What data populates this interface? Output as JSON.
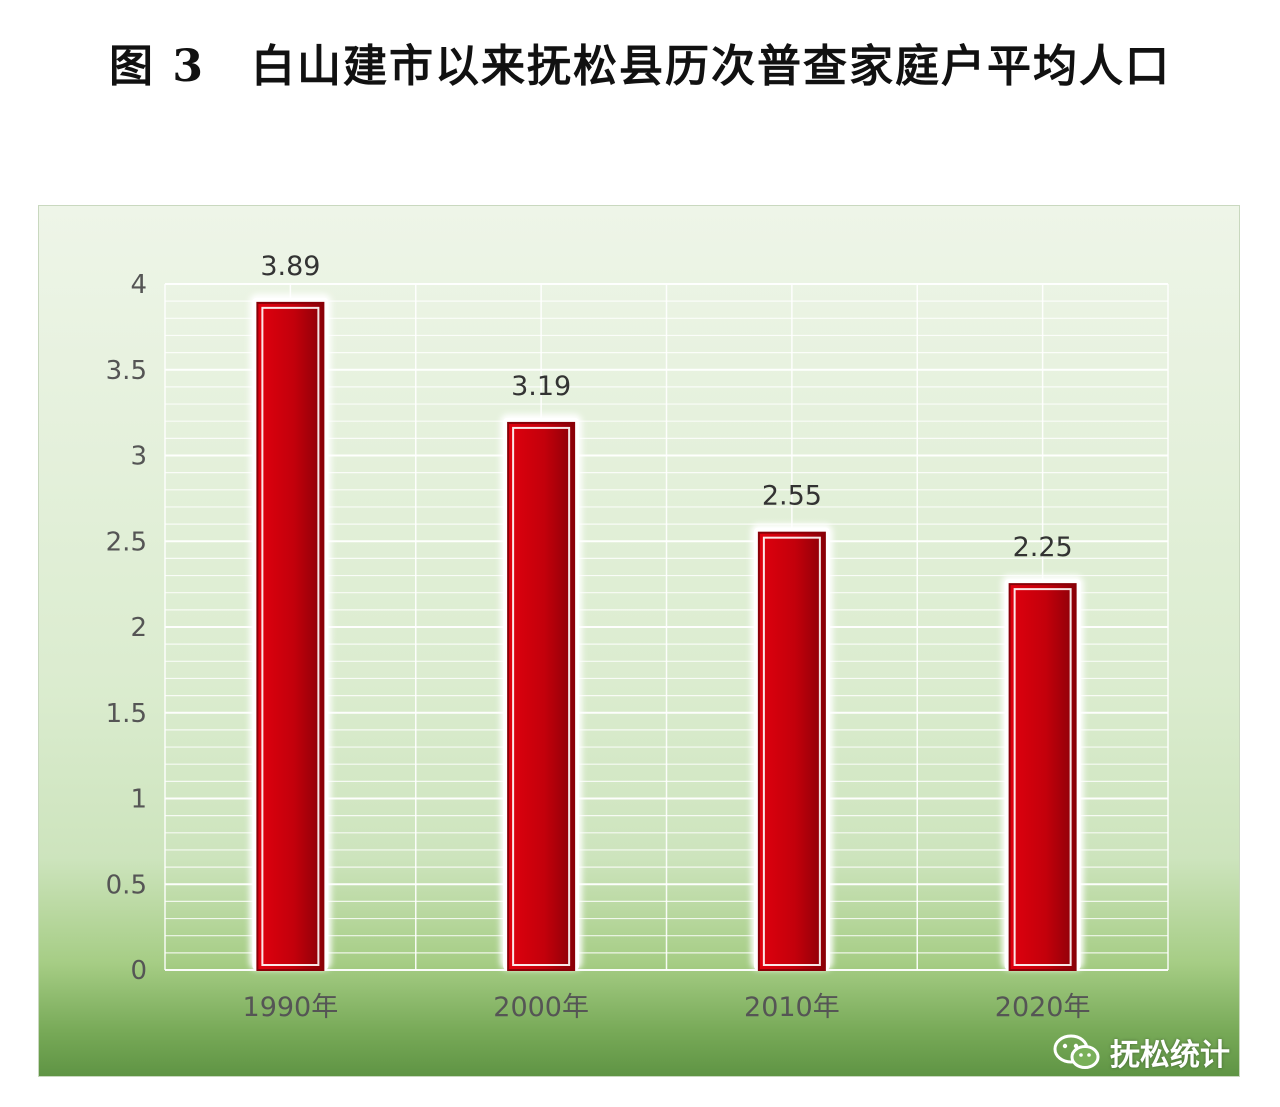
{
  "title": "图 3　白山建市以来抚松县历次普查家庭户平均人口",
  "watermark": {
    "text": "抚松统计",
    "icon": "wechat-icon"
  },
  "colors": {
    "bar": "#c8000a",
    "bar_dark": "#8a0008",
    "grid": "#ffffff",
    "axis_text": "#555555"
  },
  "chart_data": {
    "type": "bar",
    "title": "图 3　白山建市以来抚松县历次普查家庭户平均人口",
    "categories": [
      "1990年",
      "2000年",
      "2010年",
      "2020年"
    ],
    "values": [
      3.89,
      3.19,
      2.55,
      2.25
    ],
    "data_labels": [
      "3.89",
      "3.19",
      "2.55",
      "2.25"
    ],
    "y_ticks": [
      "0",
      "0.5",
      "1",
      "1.5",
      "2",
      "2.5",
      "3",
      "3.5",
      "4"
    ],
    "ylim": [
      0,
      4
    ],
    "xlabel": "",
    "ylabel": "",
    "grid": true,
    "legend": "none"
  }
}
